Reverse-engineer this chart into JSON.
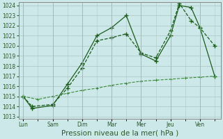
{
  "xlabel": "Pression niveau de la mer( hPa )",
  "days": [
    "Lun",
    "Sam",
    "Dim",
    "Mar",
    "Mer",
    "Jeu",
    "Ven"
  ],
  "line1_solid": {
    "x": [
      0,
      0.3,
      1.0,
      1.5,
      2.0,
      2.5,
      3.0,
      3.5,
      4.0,
      4.5,
      5.0,
      5.3,
      5.7,
      6.0,
      6.5
    ],
    "y": [
      1015.0,
      1013.8,
      1014.1,
      1016.2,
      1018.3,
      1021.0,
      1021.8,
      1023.0,
      1019.2,
      1018.5,
      1021.0,
      1024.0,
      1023.8,
      1021.8,
      1017.0
    ],
    "color": "#1a5c1a",
    "linestyle": "-",
    "linewidth": 0.9,
    "marker": "+",
    "markersize": 4,
    "markeredgewidth": 1.0
  },
  "line2_dashed": {
    "x": [
      0,
      0.3,
      1.0,
      1.5,
      2.0,
      2.5,
      3.0,
      3.5,
      4.0,
      4.5,
      5.0,
      5.3,
      5.7,
      6.0,
      6.5
    ],
    "y": [
      1015.0,
      1014.0,
      1014.2,
      1015.8,
      1017.8,
      1020.5,
      1020.8,
      1021.2,
      1019.3,
      1018.8,
      1021.5,
      1024.2,
      1022.5,
      1021.8,
      1020.0
    ],
    "color": "#1a5c1a",
    "linestyle": "--",
    "linewidth": 0.9,
    "marker": "+",
    "markersize": 4,
    "markeredgewidth": 1.0
  },
  "line3_flat": {
    "x": [
      0,
      0.5,
      1.0,
      1.5,
      2.0,
      2.5,
      3.0,
      3.5,
      4.0,
      4.5,
      5.0,
      5.5,
      6.0,
      6.5
    ],
    "y": [
      1015.0,
      1014.7,
      1015.0,
      1015.3,
      1015.6,
      1015.8,
      1016.1,
      1016.3,
      1016.5,
      1016.6,
      1016.7,
      1016.8,
      1016.9,
      1017.0
    ],
    "color": "#3a8a3a",
    "linestyle": "--",
    "linewidth": 0.8,
    "marker": "+",
    "markersize": 3,
    "markeredgewidth": 0.8
  },
  "ylim_min": 1012.8,
  "ylim_max": 1024.3,
  "yticks": [
    1013,
    1014,
    1015,
    1016,
    1017,
    1018,
    1019,
    1020,
    1021,
    1022,
    1023,
    1024
  ],
  "xlim_min": -0.15,
  "xlim_max": 6.7,
  "bg_color": "#cce8e8",
  "grid_color": "#b0c8c8",
  "tick_fontsize": 5.5,
  "xlabel_fontsize": 7.5,
  "xlabel_color": "#2a5a2a"
}
